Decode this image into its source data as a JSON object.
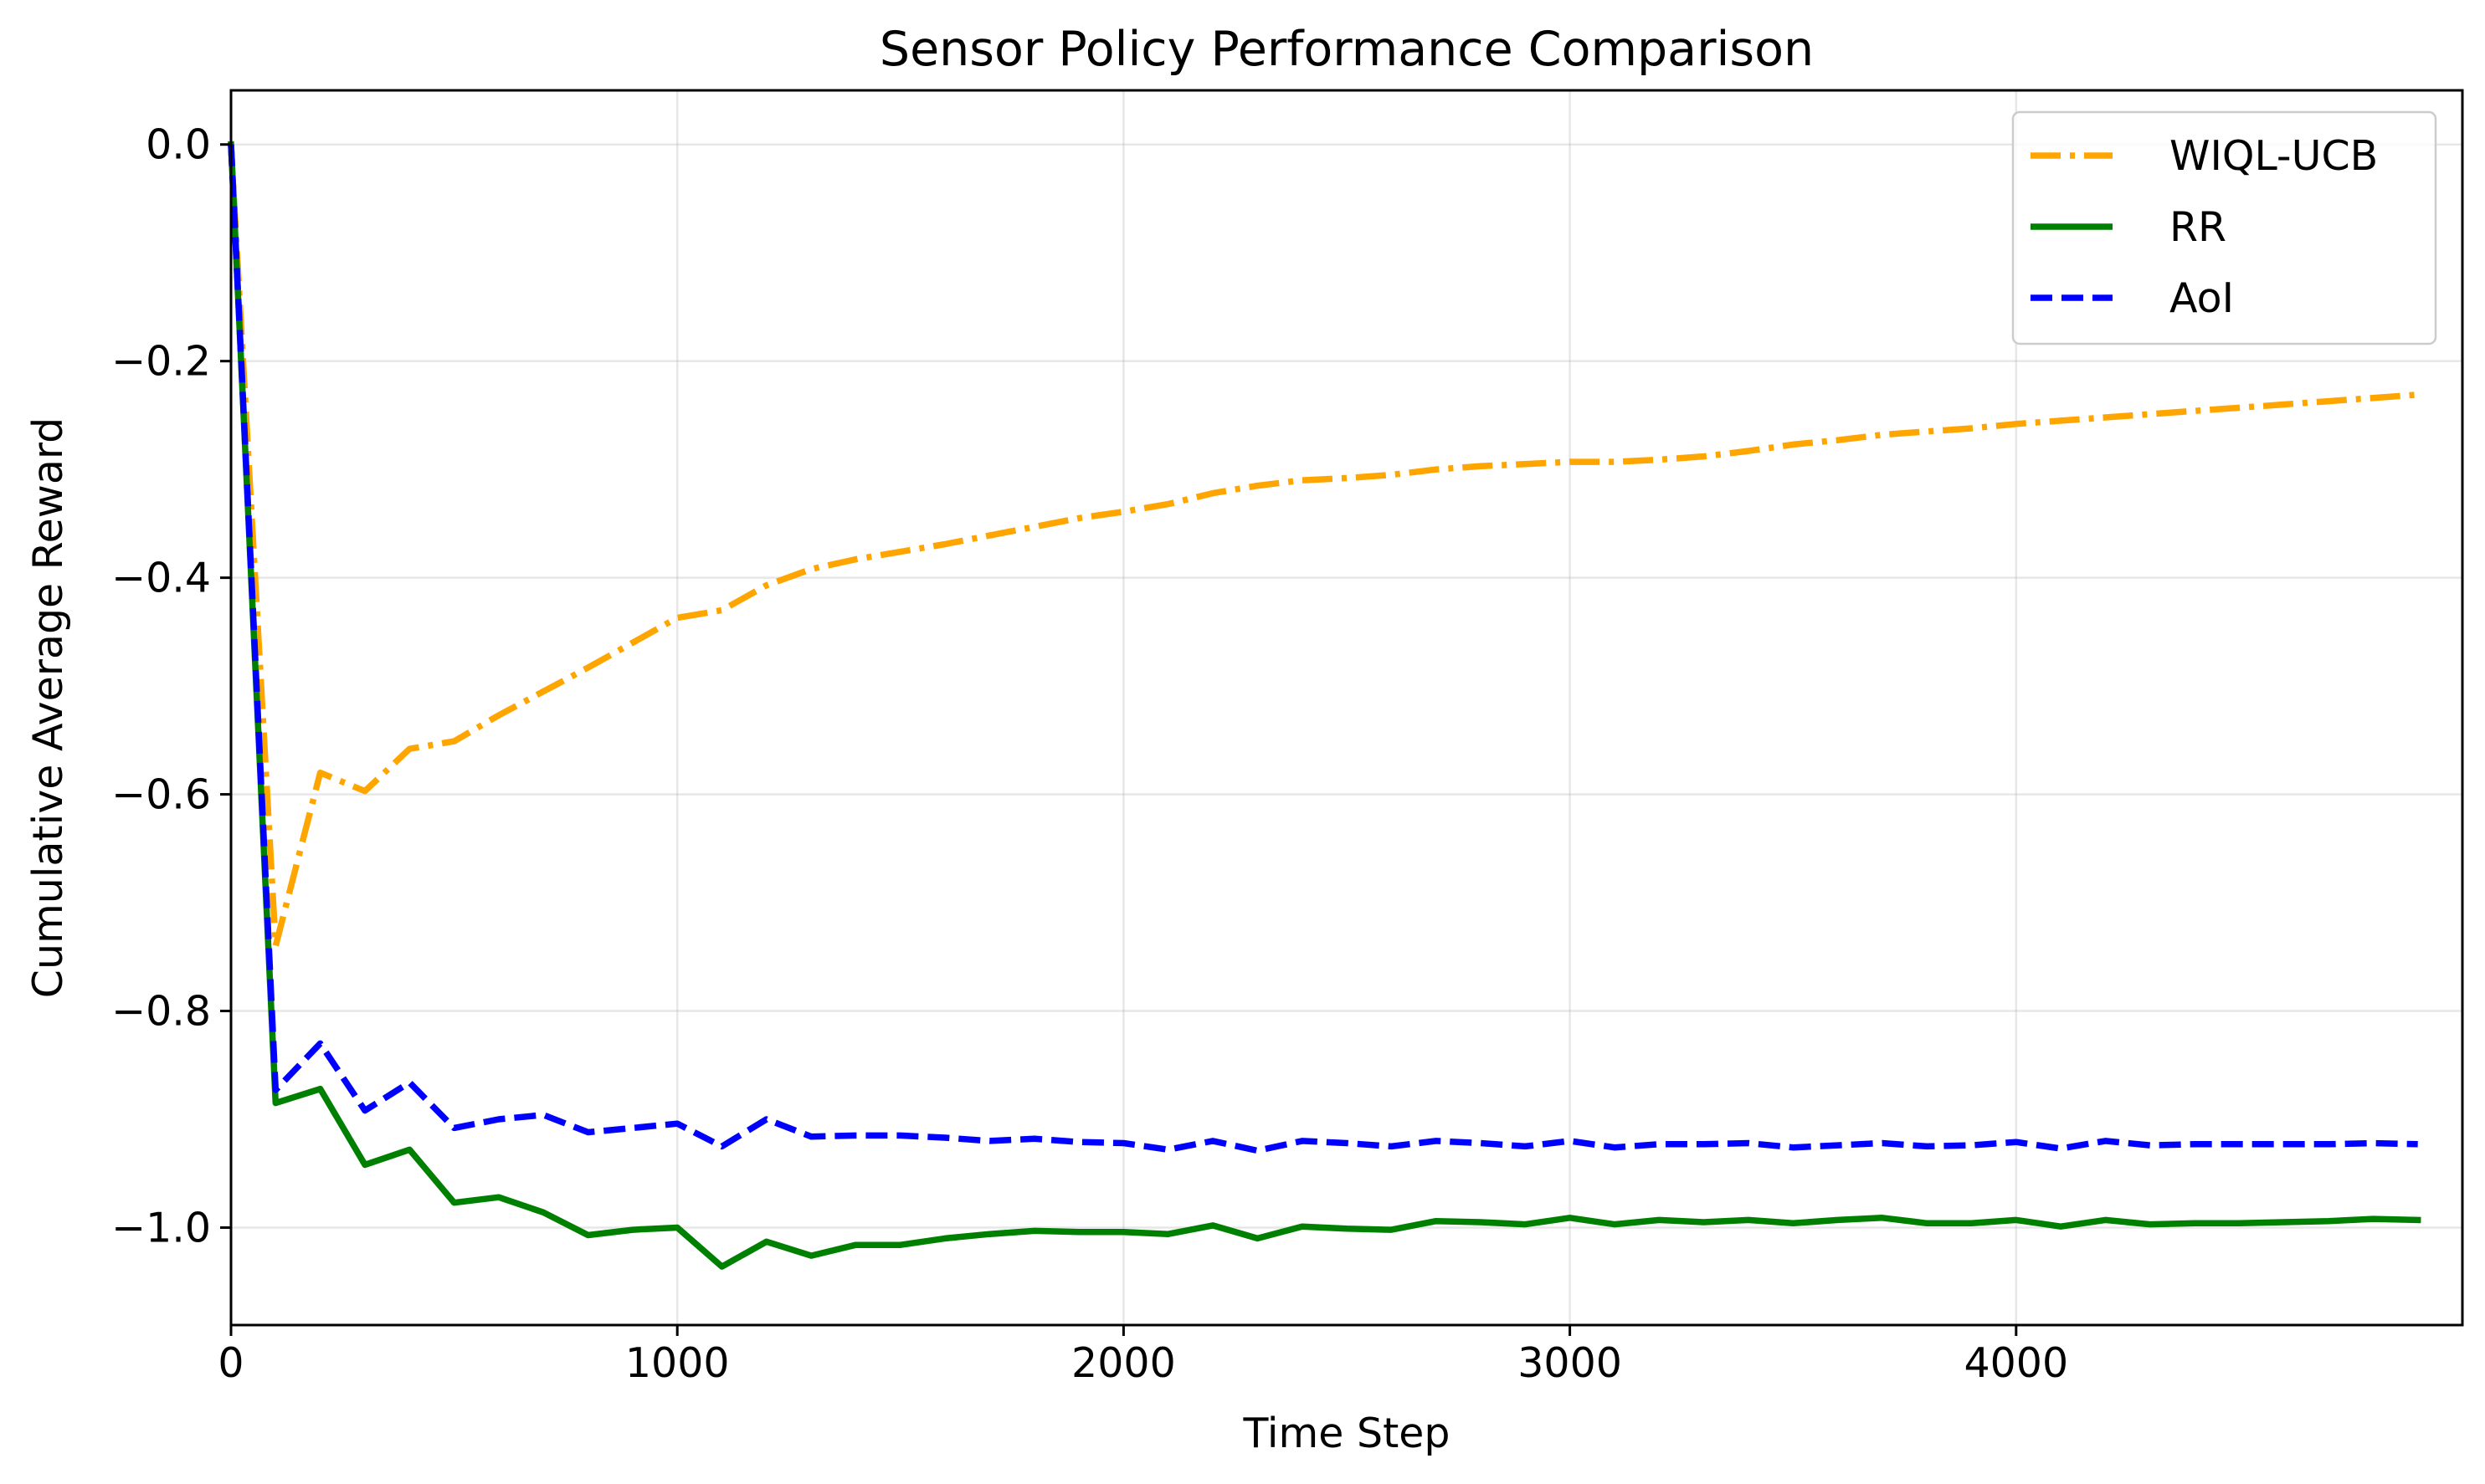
{
  "chart_data": {
    "type": "line",
    "title": "Sensor Policy Performance Comparison",
    "xlabel": "Time Step",
    "ylabel": "Cumulative Average Reward",
    "xlim": [
      0,
      5000
    ],
    "ylim": [
      -1.09,
      0.05
    ],
    "xticks": [
      0,
      1000,
      2000,
      3000,
      4000
    ],
    "xtick_labels": [
      "0",
      "1000",
      "2000",
      "3000",
      "4000"
    ],
    "yticks": [
      0.0,
      -0.2,
      -0.4,
      -0.6,
      -0.8,
      -1.0
    ],
    "ytick_labels": [
      "0.0",
      "−0.2",
      "−0.4",
      "−0.6",
      "−0.8",
      "−1.0"
    ],
    "grid": true,
    "legend_position": "top-right",
    "x": [
      0,
      100,
      200,
      300,
      400,
      500,
      600,
      700,
      800,
      900,
      1000,
      1100,
      1200,
      1300,
      1400,
      1500,
      1600,
      1700,
      1800,
      1900,
      2000,
      2100,
      2200,
      2300,
      2400,
      2500,
      2600,
      2700,
      2800,
      2900,
      3000,
      3100,
      3200,
      3300,
      3400,
      3500,
      3600,
      3700,
      3800,
      3900,
      4000,
      4100,
      4200,
      4300,
      4400,
      4500,
      4600,
      4700,
      4800,
      4900
    ],
    "series": [
      {
        "name": "WIQL-UCB",
        "color": "#FFA500",
        "style": "dashdot",
        "values": [
          0.0,
          -0.74,
          -0.58,
          -0.597,
          -0.558,
          -0.551,
          -0.527,
          -0.505,
          -0.483,
          -0.46,
          -0.437,
          -0.43,
          -0.407,
          -0.392,
          -0.383,
          -0.376,
          -0.369,
          -0.361,
          -0.353,
          -0.345,
          -0.339,
          -0.332,
          -0.322,
          -0.315,
          -0.31,
          -0.308,
          -0.305,
          -0.3,
          -0.297,
          -0.295,
          -0.293,
          -0.293,
          -0.291,
          -0.288,
          -0.283,
          -0.277,
          -0.273,
          -0.268,
          -0.265,
          -0.262,
          -0.258,
          -0.255,
          -0.252,
          -0.249,
          -0.246,
          -0.243,
          -0.24,
          -0.237,
          -0.234,
          -0.231
        ]
      },
      {
        "name": "RR",
        "color": "#008000",
        "style": "solid",
        "values": [
          0.0,
          -0.885,
          -0.872,
          -0.942,
          -0.928,
          -0.977,
          -0.972,
          -0.986,
          -1.007,
          -1.002,
          -1.0,
          -1.036,
          -1.013,
          -1.026,
          -1.016,
          -1.016,
          -1.01,
          -1.006,
          -1.003,
          -1.004,
          -1.004,
          -1.006,
          -0.998,
          -1.01,
          -0.999,
          -1.001,
          -1.002,
          -0.994,
          -0.995,
          -0.997,
          -0.991,
          -0.997,
          -0.993,
          -0.995,
          -0.993,
          -0.996,
          -0.993,
          -0.991,
          -0.996,
          -0.996,
          -0.993,
          -0.999,
          -0.993,
          -0.997,
          -0.996,
          -0.996,
          -0.995,
          -0.994,
          -0.992,
          -0.993
        ]
      },
      {
        "name": "AoI",
        "color": "#0000FF",
        "style": "dashed",
        "values": [
          0.0,
          -0.873,
          -0.83,
          -0.892,
          -0.866,
          -0.908,
          -0.9,
          -0.896,
          -0.912,
          -0.908,
          -0.904,
          -0.925,
          -0.9,
          -0.916,
          -0.915,
          -0.915,
          -0.917,
          -0.92,
          -0.918,
          -0.921,
          -0.922,
          -0.928,
          -0.92,
          -0.929,
          -0.92,
          -0.922,
          -0.925,
          -0.92,
          -0.922,
          -0.925,
          -0.92,
          -0.926,
          -0.923,
          -0.923,
          -0.922,
          -0.926,
          -0.924,
          -0.922,
          -0.925,
          -0.924,
          -0.921,
          -0.927,
          -0.92,
          -0.924,
          -0.923,
          -0.923,
          -0.923,
          -0.923,
          -0.922,
          -0.923
        ]
      }
    ]
  }
}
